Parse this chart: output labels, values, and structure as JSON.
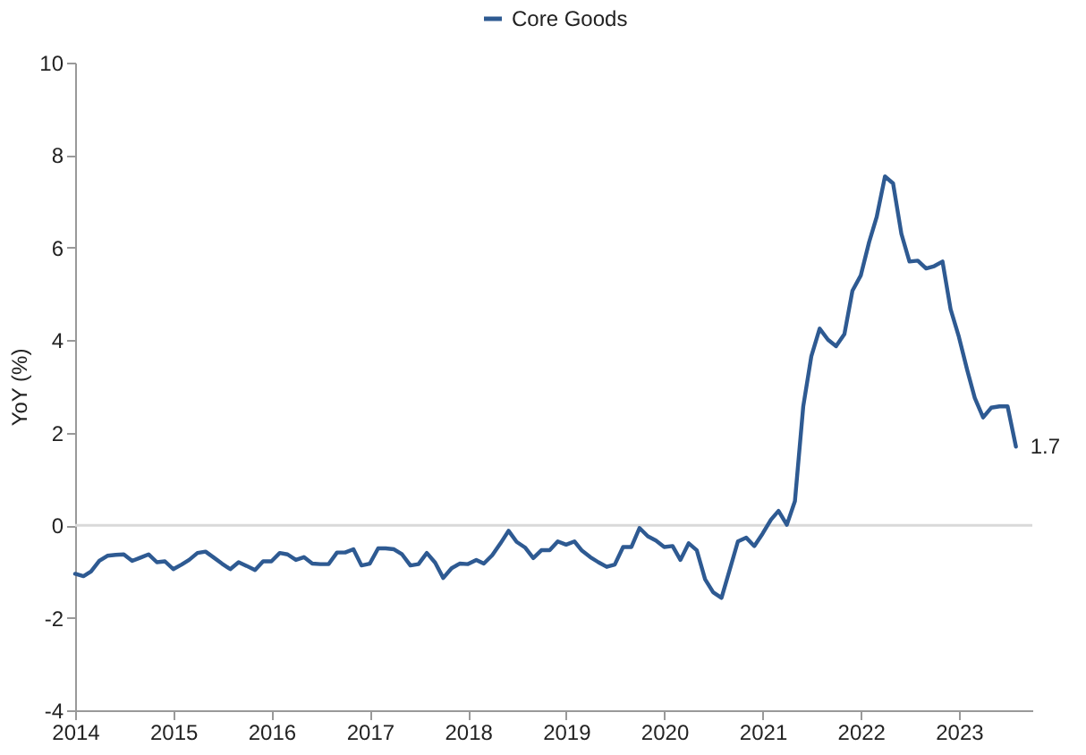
{
  "chart_data": {
    "type": "line",
    "ylabel": "YoY (%)",
    "legend": "top",
    "grid": false,
    "x": [
      "2014-01",
      "2014-02",
      "2014-03",
      "2014-04",
      "2014-05",
      "2014-06",
      "2014-07",
      "2014-08",
      "2014-09",
      "2014-10",
      "2014-11",
      "2014-12",
      "2015-01",
      "2015-02",
      "2015-03",
      "2015-04",
      "2015-05",
      "2015-06",
      "2015-07",
      "2015-08",
      "2015-09",
      "2015-10",
      "2015-11",
      "2015-12",
      "2016-01",
      "2016-02",
      "2016-03",
      "2016-04",
      "2016-05",
      "2016-06",
      "2016-07",
      "2016-08",
      "2016-09",
      "2016-10",
      "2016-11",
      "2016-12",
      "2017-01",
      "2017-02",
      "2017-03",
      "2017-04",
      "2017-05",
      "2017-06",
      "2017-07",
      "2017-08",
      "2017-09",
      "2017-10",
      "2017-11",
      "2017-12",
      "2018-01",
      "2018-02",
      "2018-03",
      "2018-04",
      "2018-05",
      "2018-06",
      "2018-07",
      "2018-08",
      "2018-09",
      "2018-10",
      "2018-11",
      "2018-12",
      "2019-01",
      "2019-02",
      "2019-03",
      "2019-04",
      "2019-05",
      "2019-06",
      "2019-07",
      "2019-08",
      "2019-09",
      "2019-10",
      "2019-11",
      "2019-12",
      "2020-01",
      "2020-02",
      "2020-03",
      "2020-04",
      "2020-05",
      "2020-06",
      "2020-07",
      "2020-08",
      "2020-09",
      "2020-10",
      "2020-11",
      "2020-12",
      "2021-01",
      "2021-02",
      "2021-03",
      "2021-04",
      "2021-05",
      "2021-06",
      "2021-07",
      "2021-08",
      "2021-09",
      "2021-10",
      "2021-11",
      "2021-12",
      "2022-01",
      "2022-02",
      "2022-03",
      "2022-04",
      "2022-05",
      "2022-06",
      "2022-07",
      "2022-08",
      "2022-09",
      "2022-10",
      "2022-11",
      "2022-12",
      "2023-01",
      "2023-02",
      "2023-03",
      "2023-04",
      "2023-05",
      "2023-06",
      "2023-07",
      "2023-08"
    ],
    "series": [
      {
        "name": "Core Goods",
        "color": "#2e5a92",
        "values": [
          -1.05,
          -1.1,
          -1.0,
          -0.77,
          -0.66,
          -0.64,
          -0.63,
          -0.77,
          -0.7,
          -0.63,
          -0.8,
          -0.78,
          -0.95,
          -0.85,
          -0.75,
          -0.6,
          -0.57,
          -0.7,
          -0.83,
          -0.95,
          -0.8,
          -0.88,
          -0.97,
          -0.78,
          -0.78,
          -0.6,
          -0.63,
          -0.75,
          -0.69,
          -0.83,
          -0.84,
          -0.84,
          -0.59,
          -0.59,
          -0.52,
          -0.87,
          -0.83,
          -0.5,
          -0.5,
          -0.52,
          -0.63,
          -0.87,
          -0.84,
          -0.6,
          -0.81,
          -1.14,
          -0.93,
          -0.83,
          -0.84,
          -0.75,
          -0.83,
          -0.65,
          -0.4,
          -0.12,
          -0.36,
          -0.48,
          -0.71,
          -0.54,
          -0.54,
          -0.35,
          -0.42,
          -0.35,
          -0.55,
          -0.69,
          -0.8,
          -0.9,
          -0.85,
          -0.47,
          -0.47,
          -0.06,
          -0.24,
          -0.33,
          -0.47,
          -0.45,
          -0.75,
          -0.39,
          -0.54,
          -1.17,
          -1.45,
          -1.57,
          -0.95,
          -0.35,
          -0.27,
          -0.45,
          -0.18,
          0.12,
          0.31,
          0.01,
          0.52,
          2.57,
          3.65,
          4.25,
          4.01,
          3.87,
          4.13,
          5.07,
          5.4,
          6.12,
          6.66,
          7.54,
          7.39,
          6.3,
          5.7,
          5.72,
          5.55,
          5.6,
          5.7,
          4.67,
          4.07,
          3.35,
          2.75,
          2.33,
          2.54,
          2.57,
          2.57,
          1.7
        ]
      }
    ],
    "xlim": [
      "2014-01",
      "2023-10"
    ],
    "xticks": [
      "2014",
      "2015",
      "2016",
      "2017",
      "2018",
      "2019",
      "2020",
      "2021",
      "2022",
      "2023"
    ],
    "ylim": [
      -4,
      10
    ],
    "yticks": [
      -4,
      -2,
      0,
      2,
      4,
      6,
      8,
      10
    ],
    "ref_lines": [
      {
        "axis": "y",
        "value": 0,
        "color": "#d9d9d9"
      }
    ],
    "annotations": [
      {
        "text": "1.7",
        "x": "2023-08",
        "y": 1.7
      }
    ]
  }
}
